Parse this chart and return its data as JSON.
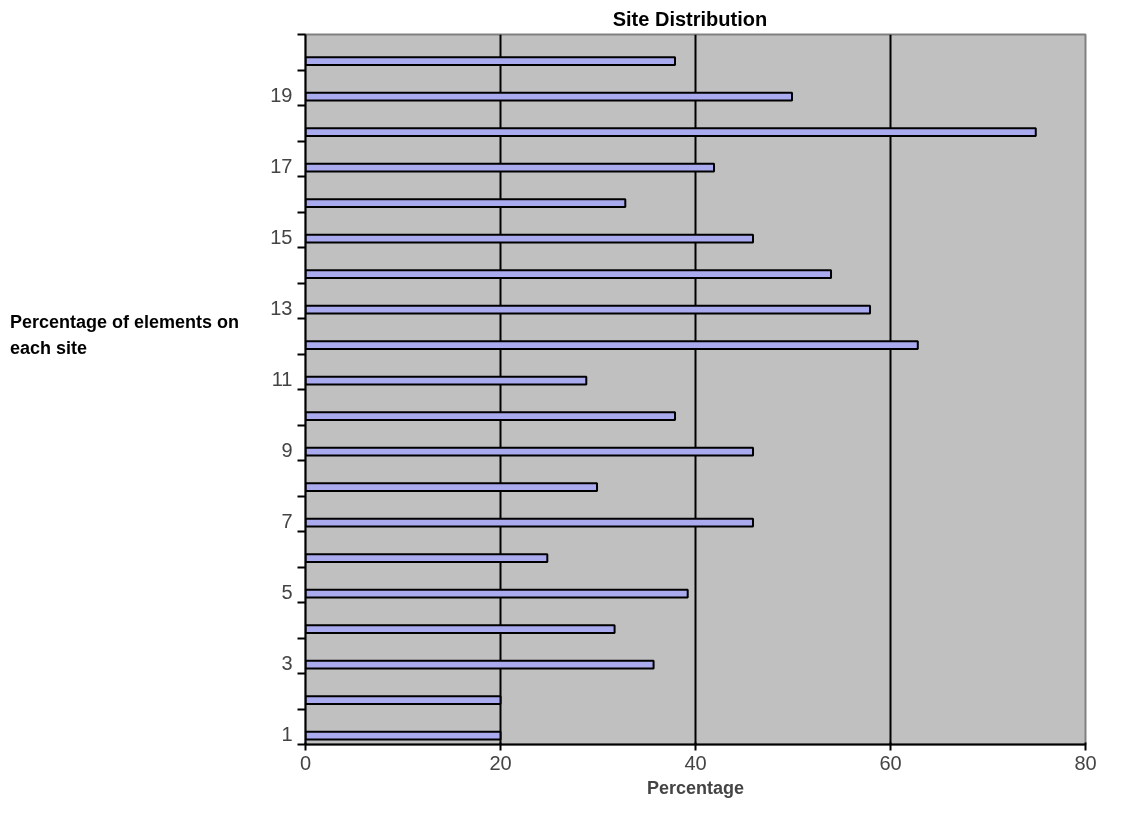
{
  "chart_data": {
    "type": "bar",
    "orientation": "horizontal",
    "title": "Site   Distribution",
    "xlabel": "Percentage",
    "ylabel": "Percentage of elements on each site",
    "categories": [
      null,
      "19",
      null,
      "17",
      null,
      "15",
      null,
      "13",
      null,
      "11",
      null,
      "9",
      null,
      "7",
      null,
      "5",
      null,
      "3",
      null,
      "1"
    ],
    "values": [
      37.9,
      49.9,
      74.9,
      41.9,
      32.8,
      45.9,
      53.9,
      57.9,
      62.8,
      28.8,
      37.9,
      45.9,
      29.9,
      45.9,
      24.8,
      39.2,
      31.7,
      35.7,
      20,
      20
    ],
    "color": "#aaaaee",
    "xlim": [
      0,
      80
    ],
    "xticks": [
      0,
      20,
      40,
      60,
      80
    ],
    "grid": "x"
  }
}
